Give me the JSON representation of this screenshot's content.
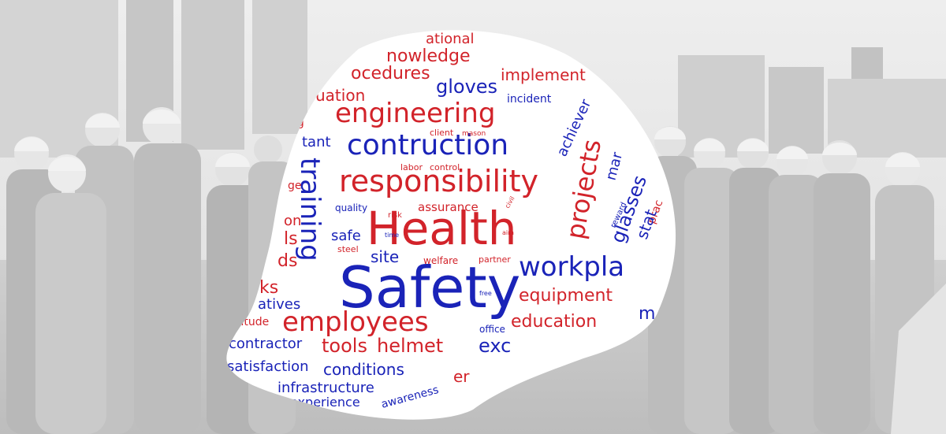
{
  "colors": {
    "red": "#d2232a",
    "blue": "#1a23b8",
    "background": "#d9d9d9"
  },
  "word_cloud": {
    "words": [
      {
        "text": "Safety",
        "color": "blue"
      },
      {
        "text": "Health",
        "color": "red"
      },
      {
        "text": "responsibility",
        "color": "red"
      },
      {
        "text": "contruction",
        "color": "blue"
      },
      {
        "text": "engineering",
        "color": "red"
      },
      {
        "text": "employees",
        "color": "red"
      },
      {
        "text": "workpla",
        "color": "blue"
      },
      {
        "text": "training",
        "color": "blue"
      },
      {
        "text": "projects",
        "color": "red"
      },
      {
        "text": "gloves",
        "color": "blue"
      },
      {
        "text": "implement",
        "color": "red"
      },
      {
        "text": "nowledge",
        "color": "red"
      },
      {
        "text": "ocedures",
        "color": "red"
      },
      {
        "text": "ational",
        "color": "red"
      },
      {
        "text": "uation",
        "color": "red"
      },
      {
        "text": "incident",
        "color": "blue"
      },
      {
        "text": "achiever",
        "color": "blue"
      },
      {
        "text": "ng",
        "color": "red"
      },
      {
        "text": "client",
        "color": "red"
      },
      {
        "text": "mason",
        "color": "red"
      },
      {
        "text": "tant",
        "color": "blue"
      },
      {
        "text": "labor",
        "color": "red"
      },
      {
        "text": "control",
        "color": "red"
      },
      {
        "text": "ge",
        "color": "red"
      },
      {
        "text": "quality",
        "color": "blue"
      },
      {
        "text": "risk",
        "color": "red"
      },
      {
        "text": "assurance",
        "color": "red"
      },
      {
        "text": "civil",
        "color": "red"
      },
      {
        "text": "on",
        "color": "red"
      },
      {
        "text": "safe",
        "color": "blue"
      },
      {
        "text": "time",
        "color": "blue"
      },
      {
        "text": "aim",
        "color": "red"
      },
      {
        "text": "ls",
        "color": "red"
      },
      {
        "text": "steel",
        "color": "red"
      },
      {
        "text": "ds",
        "color": "red"
      },
      {
        "text": "site",
        "color": "blue"
      },
      {
        "text": "welfare",
        "color": "red"
      },
      {
        "text": "partner",
        "color": "red"
      },
      {
        "text": "free",
        "color": "blue"
      },
      {
        "text": "equipment",
        "color": "red"
      },
      {
        "text": "education",
        "color": "red"
      },
      {
        "text": "rks",
        "color": "red"
      },
      {
        "text": "atives",
        "color": "blue"
      },
      {
        "text": "titude",
        "color": "red"
      },
      {
        "text": "office",
        "color": "blue"
      },
      {
        "text": "contractor",
        "color": "blue"
      },
      {
        "text": "tools",
        "color": "red"
      },
      {
        "text": "helmet",
        "color": "red"
      },
      {
        "text": "exc",
        "color": "blue"
      },
      {
        "text": "satisfaction",
        "color": "blue"
      },
      {
        "text": "conditions",
        "color": "blue"
      },
      {
        "text": "infrastructure",
        "color": "blue"
      },
      {
        "text": "experience",
        "color": "blue"
      },
      {
        "text": "awareness",
        "color": "blue"
      },
      {
        "text": "er",
        "color": "red"
      },
      {
        "text": "mar",
        "color": "blue"
      },
      {
        "text": "reward",
        "color": "blue"
      },
      {
        "text": "glasses",
        "color": "blue"
      },
      {
        "text": "prac",
        "color": "red"
      },
      {
        "text": "stat",
        "color": "blue"
      },
      {
        "text": "m",
        "color": "blue"
      }
    ]
  }
}
